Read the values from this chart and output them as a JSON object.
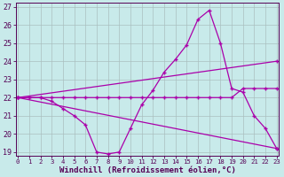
{
  "background_color": "#c8eaea",
  "grid_color": "#aabfbf",
  "line_color": "#aa00aa",
  "xlim_min": -0.2,
  "xlim_max": 23.2,
  "ylim_min": 18.8,
  "ylim_max": 27.2,
  "xticks": [
    0,
    1,
    2,
    3,
    4,
    5,
    6,
    7,
    8,
    9,
    10,
    11,
    12,
    13,
    14,
    15,
    16,
    17,
    18,
    19,
    20,
    21,
    22,
    23
  ],
  "yticks": [
    19,
    20,
    21,
    22,
    23,
    24,
    25,
    26,
    27
  ],
  "xlabel": "Windchill (Refroidissement éolien,°C)",
  "line1_x": [
    0,
    1,
    2,
    3,
    4,
    5,
    6,
    7,
    8,
    9,
    10,
    11,
    12,
    13,
    14,
    15,
    16,
    17,
    18,
    19,
    20,
    21,
    22,
    23
  ],
  "line1_y": [
    22,
    22,
    22,
    21.8,
    21.4,
    21.0,
    20.5,
    19.0,
    18.9,
    19.0,
    20.3,
    21.6,
    22.4,
    23.4,
    24.1,
    24.9,
    26.3,
    26.8,
    25.0,
    22.5,
    22.3,
    21.0,
    20.3,
    19.2
  ],
  "line2_x": [
    0,
    23
  ],
  "line2_y": [
    22,
    24.0
  ],
  "line3_x": [
    0,
    1,
    2,
    3,
    4,
    5,
    6,
    7,
    8,
    9,
    10,
    11,
    12,
    13,
    14,
    15,
    16,
    17,
    18,
    19,
    20,
    21,
    22,
    23
  ],
  "line3_y": [
    22,
    22,
    22,
    22,
    22,
    22,
    22,
    22,
    22,
    22,
    22,
    22,
    22,
    22,
    22,
    22,
    22,
    22,
    22,
    22,
    22.5,
    22.5,
    22.5,
    22.5
  ],
  "line4_x": [
    0,
    23
  ],
  "line4_y": [
    22,
    19.2
  ],
  "marker_size": 3.5,
  "linewidth": 0.9,
  "tick_fontsize": 6,
  "xlabel_fontsize": 6.5
}
